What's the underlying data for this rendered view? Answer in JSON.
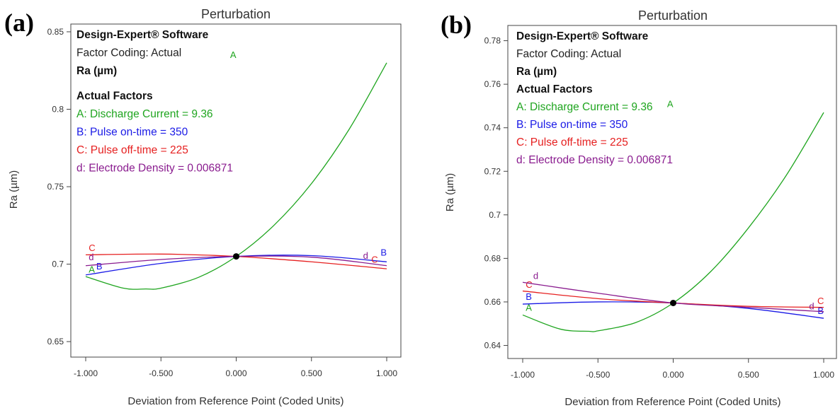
{
  "chart_data": [
    {
      "panel": "(a)",
      "type": "line",
      "title": "Perturbation",
      "xlabel": "Deviation from Reference Point (Coded Units)",
      "ylabel": "Ra (µm)",
      "xlim": [
        -1.0,
        1.0
      ],
      "ylim": [
        0.64,
        0.855
      ],
      "x_ticks": [
        -1.0,
        -0.5,
        0.0,
        0.5,
        1.0
      ],
      "x_tick_labels": [
        "-1.000",
        "-0.500",
        "0.000",
        "0.500",
        "1.000"
      ],
      "y_ticks": [
        0.65,
        0.7,
        0.75,
        0.8,
        0.85
      ],
      "y_tick_labels": [
        "0.65",
        "0.7",
        "0.75",
        "0.8",
        "0.85"
      ],
      "info_lines": [
        {
          "text": "Design-Expert® Software",
          "bold": true,
          "color": "#111111"
        },
        {
          "text": "Factor Coding: Actual",
          "bold": false,
          "color": "#222222"
        },
        {
          "text": "Ra (µm)",
          "bold": true,
          "color": "#111111"
        },
        {
          "text": "Actual Factors",
          "bold": true,
          "color": "#111111",
          "gap_before": true
        },
        {
          "text": "A: Discharge Current = 9.36",
          "bold": false,
          "color": "#1fa51f"
        },
        {
          "text": "B: Pulse on-time = 350",
          "bold": false,
          "color": "#1a1ae6"
        },
        {
          "text": "C: Pulse off-time = 225",
          "bold": false,
          "color": "#e62020"
        },
        {
          "text": "d: Electrode Density = 0.006871",
          "bold": false,
          "color": "#8a1c8f"
        }
      ],
      "reference_point": {
        "x": 0.0,
        "y": 0.705
      },
      "series": [
        {
          "label": "A",
          "color": "#1fa51f",
          "x": [
            -1.0,
            -0.75,
            -0.6,
            -0.5,
            -0.25,
            0.0,
            0.25,
            0.5,
            0.75,
            1.0
          ],
          "y": [
            0.692,
            0.6845,
            0.684,
            0.6845,
            0.6915,
            0.705,
            0.725,
            0.752,
            0.787,
            0.83
          ],
          "label_start": {
            "x": -0.98,
            "y": 0.6945
          },
          "label_end": {
            "x": -0.02,
            "y": 0.833
          }
        },
        {
          "label": "B",
          "color": "#1a1ae6",
          "x": [
            -1.0,
            -0.5,
            0.0,
            0.5,
            1.0
          ],
          "y": [
            0.693,
            0.7005,
            0.705,
            0.7055,
            0.7015
          ],
          "label_start": {
            "x": -0.93,
            "y": 0.6965
          },
          "label_end": {
            "x": 0.98,
            "y": 0.7055
          }
        },
        {
          "label": "C",
          "color": "#e62020",
          "x": [
            -1.0,
            -0.5,
            0.0,
            0.5,
            1.0
          ],
          "y": [
            0.706,
            0.7065,
            0.705,
            0.7015,
            0.697
          ],
          "label_start": {
            "x": -0.98,
            "y": 0.7085
          },
          "label_end": {
            "x": 0.92,
            "y": 0.701
          }
        },
        {
          "label": "d",
          "color": "#8a1c8f",
          "x": [
            -1.0,
            -0.5,
            0.0,
            0.5,
            1.0
          ],
          "y": [
            0.699,
            0.703,
            0.705,
            0.7045,
            0.699
          ],
          "label_start": {
            "x": -0.98,
            "y": 0.7025
          },
          "label_end": {
            "x": 0.86,
            "y": 0.7035
          }
        }
      ]
    },
    {
      "panel": "(b)",
      "type": "line",
      "title": "Perturbation",
      "xlabel": "Deviation from Reference Point (Coded Units)",
      "ylabel": "Ra (µm)",
      "xlim": [
        -1.0,
        1.0
      ],
      "ylim": [
        0.634,
        0.787
      ],
      "x_ticks": [
        -1.0,
        -0.5,
        0.0,
        0.5,
        1.0
      ],
      "x_tick_labels": [
        "-1.000",
        "-0.500",
        "0.000",
        "0.500",
        "1.000"
      ],
      "y_ticks": [
        0.64,
        0.66,
        0.68,
        0.7,
        0.72,
        0.74,
        0.76,
        0.78
      ],
      "y_tick_labels": [
        "0.64",
        "0.66",
        "0.68",
        "0.7",
        "0.72",
        "0.74",
        "0.76",
        "0.78"
      ],
      "info_lines": [
        {
          "text": "Design-Expert® Software",
          "bold": true,
          "color": "#111111"
        },
        {
          "text": "Factor Coding: Actual",
          "bold": false,
          "color": "#222222"
        },
        {
          "text": "Ra (µm)",
          "bold": true,
          "color": "#111111"
        },
        {
          "text": "Actual Factors",
          "bold": true,
          "color": "#111111"
        },
        {
          "text": "A: Discharge Current = 9.36",
          "bold": false,
          "color": "#1fa51f"
        },
        {
          "text": "B: Pulse on-time = 350",
          "bold": false,
          "color": "#1a1ae6"
        },
        {
          "text": "C: Pulse off-time = 225",
          "bold": false,
          "color": "#e62020"
        },
        {
          "text": "d: Electrode Density = 0.006871",
          "bold": false,
          "color": "#8a1c8f"
        }
      ],
      "reference_point": {
        "x": 0.0,
        "y": 0.6595
      },
      "series": [
        {
          "label": "A",
          "color": "#1fa51f",
          "x": [
            -1.0,
            -0.75,
            -0.56,
            -0.5,
            -0.25,
            0.0,
            0.25,
            0.5,
            0.75,
            1.0
          ],
          "y": [
            0.654,
            0.6475,
            0.6465,
            0.6467,
            0.6505,
            0.6595,
            0.674,
            0.694,
            0.718,
            0.747
          ],
          "label_start": {
            "x": -0.98,
            "y": 0.656
          },
          "label_end": {
            "x": -0.02,
            "y": 0.7495
          }
        },
        {
          "label": "B",
          "color": "#1a1ae6",
          "x": [
            -1.0,
            -0.5,
            0.0,
            0.5,
            1.0
          ],
          "y": [
            0.659,
            0.66,
            0.6595,
            0.657,
            0.6525
          ],
          "label_start": {
            "x": -0.98,
            "y": 0.661
          },
          "label_end": {
            "x": 0.98,
            "y": 0.6545
          }
        },
        {
          "label": "C",
          "color": "#e62020",
          "x": [
            -1.0,
            -0.5,
            0.0,
            0.5,
            1.0
          ],
          "y": [
            0.665,
            0.6615,
            0.6595,
            0.658,
            0.6575
          ],
          "label_start": {
            "x": -0.98,
            "y": 0.6665
          },
          "label_end": {
            "x": 0.98,
            "y": 0.659
          }
        },
        {
          "label": "d",
          "color": "#8a1c8f",
          "x": [
            -1.0,
            -0.5,
            0.0,
            0.5,
            1.0
          ],
          "y": [
            0.669,
            0.664,
            0.6595,
            0.6575,
            0.6555
          ],
          "label_start": {
            "x": -0.93,
            "y": 0.6705
          },
          "label_end": {
            "x": 0.92,
            "y": 0.6565
          }
        }
      ]
    }
  ]
}
